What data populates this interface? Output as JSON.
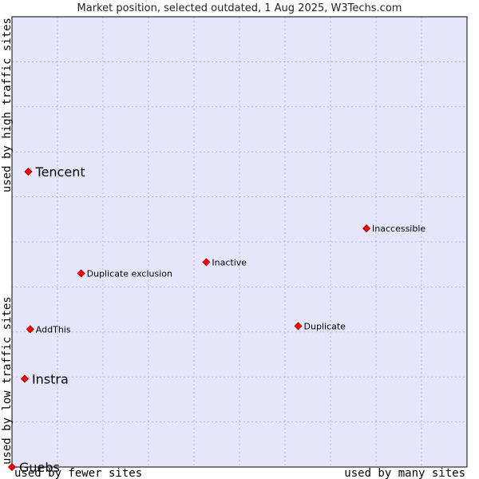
{
  "chart_data": {
    "type": "scatter",
    "title": "Market position, selected outdated, 1 Aug 2025, W3Techs.com",
    "xlabel_left": "used by fewer sites",
    "xlabel_right": "used by many sites",
    "ylabel_bottom": "used by low traffic sites",
    "ylabel_top": "used by high traffic sites",
    "xlim": [
      0,
      100
    ],
    "ylim": [
      0,
      100
    ],
    "grid": true,
    "colors": {
      "plot_background": "#e6e6fa",
      "grid": "#a0a0c0",
      "marker": "#ff0000",
      "marker_edge": "#a00000"
    },
    "points": [
      {
        "name": "Tencent",
        "x": 3.6,
        "y": 65.6,
        "size": "large"
      },
      {
        "name": "Inaccessible",
        "x": 77.9,
        "y": 53.0,
        "size": "small"
      },
      {
        "name": "Inactive",
        "x": 42.7,
        "y": 45.5,
        "size": "small"
      },
      {
        "name": "Duplicate exclusion",
        "x": 15.2,
        "y": 43.0,
        "size": "small"
      },
      {
        "name": "AddThis",
        "x": 4.0,
        "y": 30.6,
        "size": "small"
      },
      {
        "name": "Duplicate",
        "x": 62.9,
        "y": 31.3,
        "size": "small"
      },
      {
        "name": "Instra",
        "x": 2.8,
        "y": 19.6,
        "size": "large"
      },
      {
        "name": "Guebs",
        "x": 0.0,
        "y": 0.0,
        "size": "large"
      }
    ]
  }
}
